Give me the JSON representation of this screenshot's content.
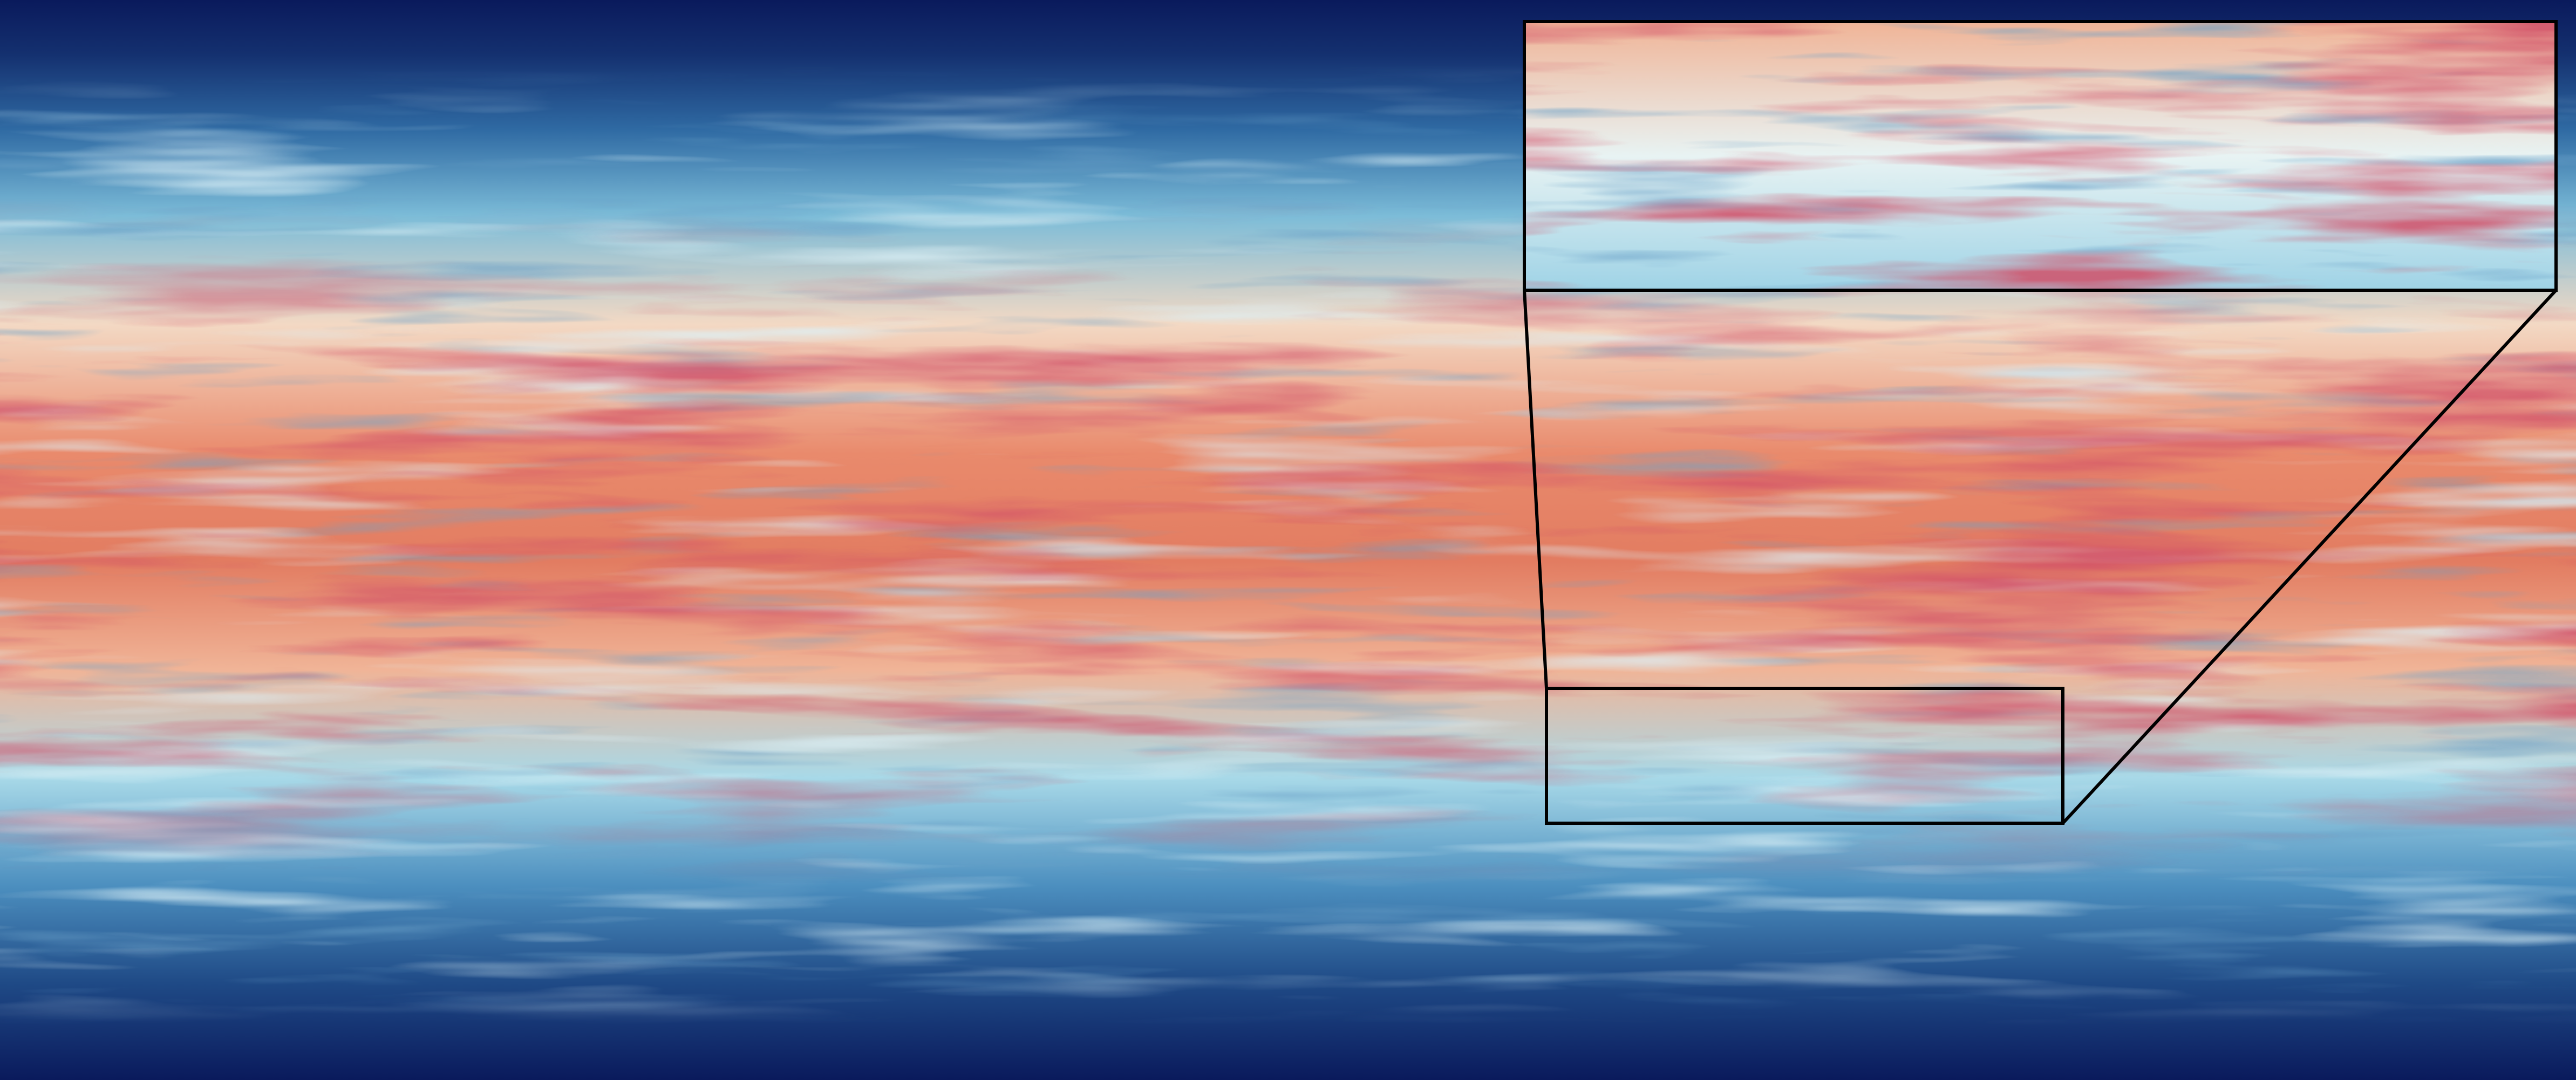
{
  "figure": {
    "kind": "turbulent flow field visualization with zoom inset",
    "colormap": [
      "#0a1a5c",
      "#1f4f8c",
      "#4a8cbd",
      "#9fd3e6",
      "#e8f6f7",
      "#fbe3cf",
      "#f2a07f",
      "#d9533f",
      "#a31a28"
    ],
    "outline_color": "#000000"
  }
}
